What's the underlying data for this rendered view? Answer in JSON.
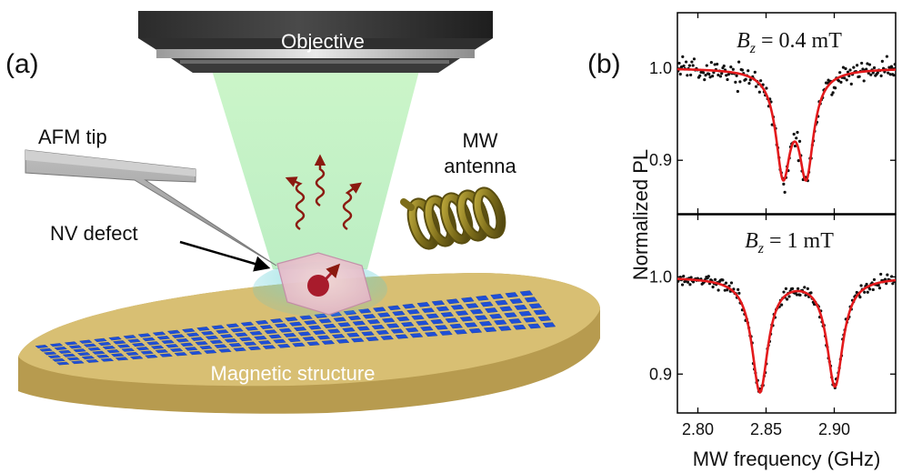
{
  "panel_a": {
    "label": "(a)",
    "objective_label": "Objective",
    "afm_tip_label": "AFM tip",
    "nv_defect_label": "NV defect",
    "mw_antenna_label_line1": "MW",
    "mw_antenna_label_line2": "antenna",
    "magnetic_structure_label": "Magnetic structure",
    "colors": {
      "laser_green": "#b9f2b7",
      "antenna_gold": "#8a7a1e",
      "substrate_tan": "#d8bf73",
      "tile_blue": "#1f4fd6",
      "photon_red": "#8b1a10"
    }
  },
  "panel_b": {
    "label": "(b)",
    "ylabel": "Normalized PL",
    "xlabel": "MW frequency (GHz)",
    "colors": {
      "fit": "#e31a1c",
      "points": "#111111"
    }
  },
  "chart_data": [
    {
      "type": "scatter",
      "annotation_var": "B",
      "annotation_sub": "z",
      "annotation_value": " = 0.4 mT",
      "xlim": [
        2.785,
        2.945
      ],
      "ylim": [
        0.842,
        1.06
      ],
      "xticks": [
        2.8,
        2.85,
        2.9
      ],
      "xtick_labels": [
        "2.80",
        "2.85",
        "2.90"
      ],
      "yticks": [
        1.0,
        0.9
      ],
      "ytick_labels": [
        "1.0",
        "0.9"
      ],
      "fit": {
        "baseline": 1.0,
        "dips": [
          {
            "center": 2.8625,
            "depth": 0.108,
            "width": 0.0065
          },
          {
            "center": 2.8795,
            "depth": 0.108,
            "width": 0.0065
          }
        ]
      },
      "noise": 0.006,
      "n_points": 190
    },
    {
      "type": "scatter",
      "annotation_var": "B",
      "annotation_sub": "z",
      "annotation_value": " = 1 mT",
      "xlim": [
        2.785,
        2.945
      ],
      "ylim": [
        0.86,
        1.064
      ],
      "xticks": [
        2.8,
        2.85,
        2.9
      ],
      "xtick_labels": [
        "2.80",
        "2.85",
        "2.90"
      ],
      "yticks": [
        1.0,
        0.9
      ],
      "ytick_labels": [
        "1.0",
        "0.9"
      ],
      "fit": {
        "baseline": 1.0,
        "dips": [
          {
            "center": 2.8455,
            "depth": 0.117,
            "width": 0.0072
          },
          {
            "center": 2.9005,
            "depth": 0.111,
            "width": 0.0072
          }
        ]
      },
      "noise": 0.0035,
      "n_points": 200
    }
  ]
}
